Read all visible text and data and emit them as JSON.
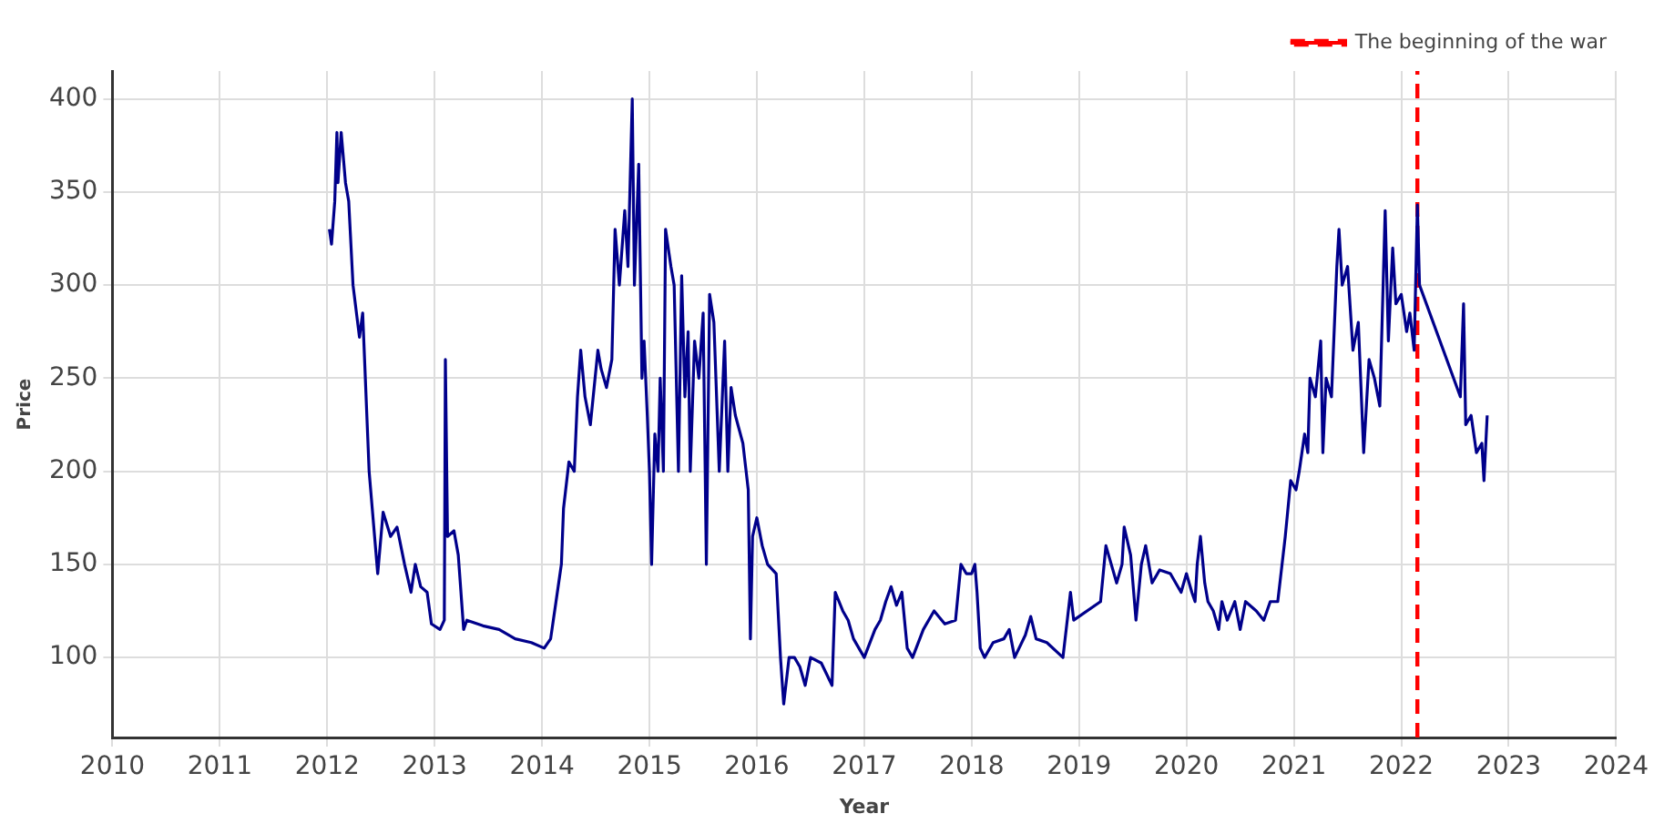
{
  "chart_data": {
    "type": "line",
    "xlabel": "Year",
    "ylabel": "Price",
    "xlim": [
      2010,
      2024
    ],
    "xticks": [
      2010,
      2011,
      2012,
      2013,
      2014,
      2015,
      2016,
      2017,
      2018,
      2019,
      2020,
      2021,
      2022,
      2023,
      2024
    ],
    "ylim": [
      57,
      415
    ],
    "yticks": [
      100,
      150,
      200,
      250,
      300,
      350,
      400
    ],
    "grid": true,
    "legend": "top right",
    "line_style": "solid",
    "marker": "none",
    "ref_lines": [
      {
        "axis": "x",
        "value": 2022.15,
        "label": "The beginning of the war",
        "color": "#ff0000",
        "line_style": "dashed"
      }
    ],
    "series": [
      {
        "color": "#00008b",
        "x": [
          2012.02,
          2012.04,
          2012.07,
          2012.09,
          2012.1,
          2012.13,
          2012.17,
          2012.2,
          2012.24,
          2012.3,
          2012.33,
          2012.39,
          2012.47,
          2012.52,
          2012.59,
          2012.65,
          2012.72,
          2012.78,
          2012.82,
          2012.87,
          2012.93,
          2012.97,
          2013.05,
          2013.09,
          2013.1,
          2013.12,
          2013.18,
          2013.22,
          2013.27,
          2013.3,
          2013.45,
          2013.6,
          2013.75,
          2013.9,
          2014.02,
          2014.08,
          2014.13,
          2014.18,
          2014.2,
          2014.25,
          2014.3,
          2014.33,
          2014.36,
          2014.4,
          2014.45,
          2014.52,
          2014.55,
          2014.6,
          2014.65,
          2014.68,
          2014.72,
          2014.77,
          2014.8,
          2014.84,
          2014.86,
          2014.9,
          2014.93,
          2014.95,
          2014.98,
          2015.0,
          2015.02,
          2015.05,
          2015.08,
          2015.1,
          2015.13,
          2015.15,
          2015.2,
          2015.23,
          2015.27,
          2015.3,
          2015.33,
          2015.36,
          2015.38,
          2015.42,
          2015.46,
          2015.5,
          2015.53,
          2015.56,
          2015.6,
          2015.65,
          2015.7,
          2015.73,
          2015.76,
          2015.8,
          2015.87,
          2015.92,
          2015.94,
          2015.96,
          2016.0,
          2016.05,
          2016.1,
          2016.18,
          2016.22,
          2016.25,
          2016.3,
          2016.35,
          2016.4,
          2016.45,
          2016.5,
          2016.6,
          2016.7,
          2016.73,
          2016.8,
          2016.85,
          2016.9,
          2016.95,
          2017.0,
          2017.1,
          2017.15,
          2017.2,
          2017.25,
          2017.3,
          2017.35,
          2017.4,
          2017.45,
          2017.55,
          2017.65,
          2017.75,
          2017.85,
          2017.9,
          2017.95,
          2018.0,
          2018.03,
          2018.05,
          2018.08,
          2018.12,
          2018.2,
          2018.3,
          2018.35,
          2018.4,
          2018.5,
          2018.55,
          2018.6,
          2018.7,
          2018.85,
          2018.92,
          2018.95,
          2019.2,
          2019.25,
          2019.3,
          2019.35,
          2019.4,
          2019.42,
          2019.48,
          2019.53,
          2019.58,
          2019.62,
          2019.68,
          2019.75,
          2019.85,
          2019.95,
          2020.0,
          2020.05,
          2020.08,
          2020.1,
          2020.13,
          2020.17,
          2020.2,
          2020.25,
          2020.3,
          2020.33,
          2020.38,
          2020.45,
          2020.5,
          2020.55,
          2020.65,
          2020.72,
          2020.78,
          2020.85,
          2020.92,
          2020.97,
          2021.02,
          2021.05,
          2021.1,
          2021.13,
          2021.15,
          2021.2,
          2021.25,
          2021.27,
          2021.3,
          2021.35,
          2021.4,
          2021.42,
          2021.45,
          2021.5,
          2021.55,
          2021.6,
          2021.65,
          2021.7,
          2021.75,
          2021.8,
          2021.85,
          2021.88,
          2021.92,
          2021.95,
          2022.0,
          2022.05,
          2022.08,
          2022.12,
          2022.15,
          2022.17,
          2022.55,
          2022.58,
          2022.6,
          2022.65,
          2022.7,
          2022.75,
          2022.77,
          2022.8
        ],
        "values": [
          330,
          322,
          345,
          382,
          355,
          382,
          355,
          345,
          300,
          272,
          285,
          200,
          145,
          178,
          165,
          170,
          150,
          135,
          150,
          138,
          135,
          118,
          115,
          120,
          260,
          165,
          168,
          155,
          115,
          120,
          117,
          115,
          110,
          108,
          105,
          110,
          130,
          150,
          180,
          205,
          200,
          240,
          265,
          240,
          225,
          265,
          255,
          245,
          260,
          330,
          300,
          340,
          310,
          400,
          300,
          365,
          250,
          270,
          230,
          200,
          150,
          220,
          200,
          250,
          200,
          330,
          310,
          300,
          200,
          305,
          240,
          275,
          200,
          270,
          250,
          285,
          150,
          295,
          280,
          200,
          270,
          200,
          245,
          230,
          215,
          190,
          110,
          165,
          175,
          160,
          150,
          145,
          100,
          75,
          100,
          100,
          95,
          85,
          100,
          97,
          85,
          135,
          125,
          120,
          110,
          105,
          100,
          115,
          120,
          130,
          138,
          128,
          135,
          105,
          100,
          115,
          125,
          118,
          120,
          150,
          145,
          145,
          150,
          135,
          105,
          100,
          108,
          110,
          115,
          100,
          112,
          122,
          110,
          108,
          100,
          135,
          120,
          130,
          160,
          150,
          140,
          150,
          170,
          155,
          120,
          150,
          160,
          140,
          147,
          145,
          135,
          145,
          135,
          130,
          150,
          165,
          140,
          130,
          125,
          115,
          130,
          120,
          130,
          115,
          130,
          125,
          120,
          130,
          130,
          165,
          195,
          190,
          200,
          220,
          210,
          250,
          240,
          270,
          210,
          250,
          240,
          310,
          330,
          300,
          310,
          265,
          280,
          210,
          260,
          250,
          235,
          340,
          270,
          320,
          290,
          295,
          275,
          285,
          265,
          343,
          300,
          240,
          290,
          225,
          230,
          210,
          215,
          195,
          230
        ]
      }
    ]
  }
}
